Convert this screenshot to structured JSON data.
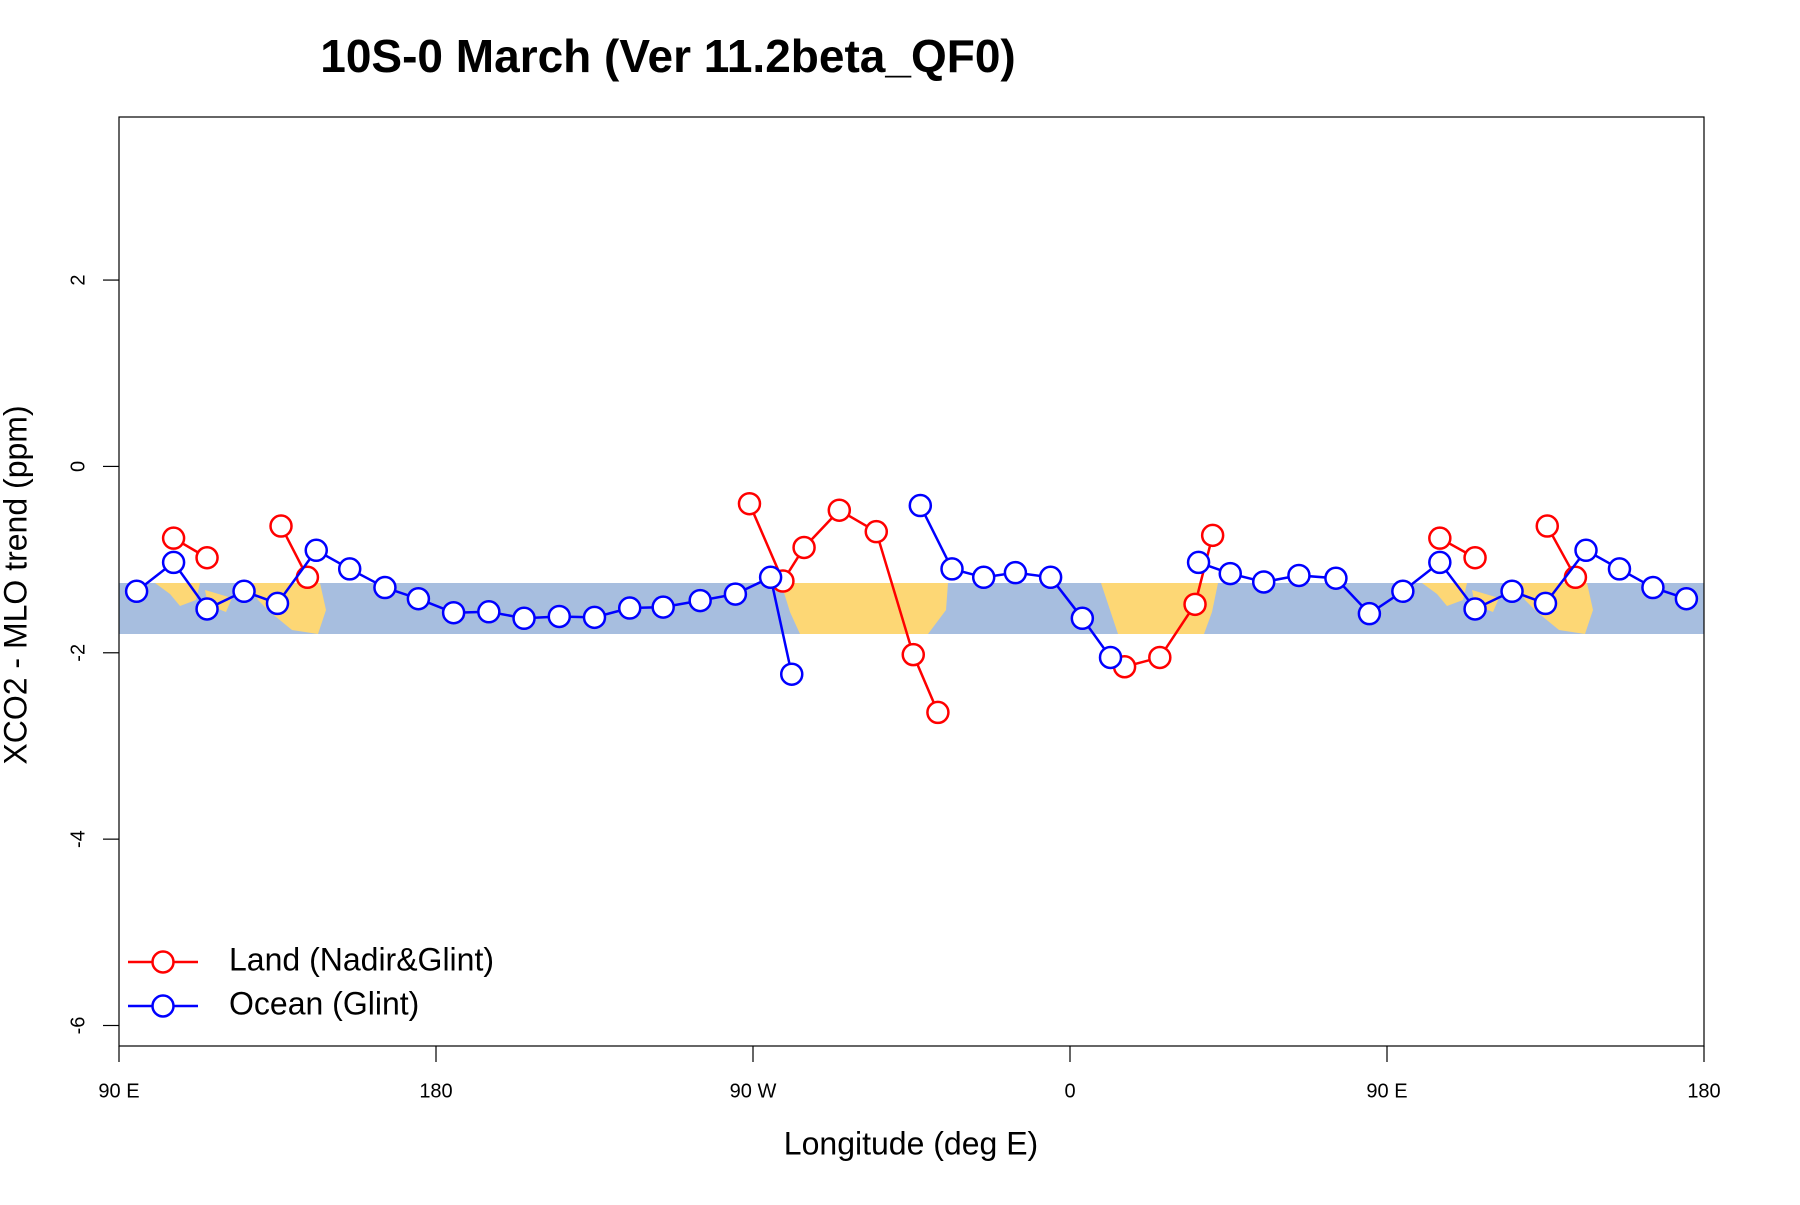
{
  "chart_data": {
    "type": "line",
    "title": "10S-0 March (Ver 11.2beta_QF0)",
    "x_label": "Longitude (deg E)",
    "y_label": "XCO2 - MLO trend (ppm)",
    "xlim": [
      90,
      540
    ],
    "ylim": [
      -6.22,
      3.75
    ],
    "xticks": [
      {
        "value": 90,
        "label": "90 E"
      },
      180,
      {
        "value": 270,
        "label": "90 W"
      },
      {
        "value": 360,
        "label": "0"
      },
      {
        "value": 450,
        "label": "90 E"
      },
      {
        "value": 540,
        "label": "180"
      }
    ],
    "yticks": [
      -6,
      -4,
      -2,
      0,
      2
    ],
    "legend": "bottom-left",
    "series": [
      {
        "name": "Land (Nadir&Glint)",
        "color": "#ff0000",
        "x": [
          105.5,
          115,
          null,
          136,
          143.5,
          null,
          269,
          278.5,
          284.5,
          294.5,
          305,
          315.5,
          322.5,
          null,
          375.5,
          385.5,
          395.5,
          400.5,
          null,
          465,
          475,
          null,
          495.5,
          503.5
        ],
        "values": [
          -0.77,
          -0.98,
          null,
          -0.64,
          -1.19,
          null,
          -0.4,
          -1.23,
          -0.87,
          -0.47,
          -0.7,
          -2.02,
          -2.64,
          null,
          -2.15,
          -2.05,
          -1.48,
          -0.74,
          null,
          -0.77,
          -0.98,
          null,
          -0.64,
          -1.19
        ]
      },
      {
        "name": "Ocean (Glint)",
        "color": "#0000ff",
        "x": [
          95,
          105.5,
          115,
          125.5,
          135,
          146,
          155.5,
          165.5,
          175,
          185,
          195,
          205,
          215,
          225,
          235,
          244.5,
          255,
          265,
          275,
          281,
          null,
          317.5,
          326.5,
          335.5,
          344.5,
          354.5,
          363.5,
          371.5,
          null,
          396.5,
          405.5,
          415,
          425,
          435.5,
          445,
          454.5,
          465,
          475,
          485.5,
          495,
          506.5,
          516,
          525.5,
          535
        ],
        "values": [
          -1.34,
          -1.03,
          -1.53,
          -1.34,
          -1.47,
          -0.9,
          -1.1,
          -1.3,
          -1.42,
          -1.57,
          -1.56,
          -1.63,
          -1.61,
          -1.62,
          -1.52,
          -1.51,
          -1.44,
          -1.37,
          -1.19,
          -2.23,
          null,
          -0.42,
          -1.1,
          -1.19,
          -1.14,
          -1.19,
          -1.63,
          -2.05,
          null,
          -1.03,
          -1.15,
          -1.24,
          -1.17,
          -1.2,
          -1.58,
          -1.34,
          -1.03,
          -1.53,
          -1.34,
          -1.47,
          -0.9,
          -1.1,
          -1.3,
          -1.42
        ]
      }
    ]
  }
}
